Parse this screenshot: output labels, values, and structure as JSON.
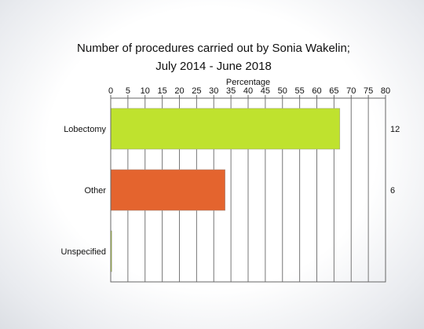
{
  "chart_data": {
    "type": "bar",
    "orientation": "horizontal",
    "title_line1": "Number of procedures carried out by Sonia Wakelin;",
    "title_line2": "July 2014 - June 2018",
    "xlabel": "Percentage",
    "ylabel": "",
    "xlim": [
      0,
      80
    ],
    "ticks": [
      0,
      5,
      10,
      15,
      20,
      25,
      30,
      35,
      40,
      45,
      50,
      55,
      60,
      65,
      70,
      75,
      80
    ],
    "grid": true,
    "axis_position": "top",
    "categories": [
      "Lobectomy",
      "Other",
      "Unspecified"
    ],
    "values": [
      66.7,
      33.3,
      0.3
    ],
    "counts": [
      "12",
      "6",
      ""
    ],
    "colors": [
      "#bfe22e",
      "#e4642e",
      "#bfe22e"
    ]
  }
}
